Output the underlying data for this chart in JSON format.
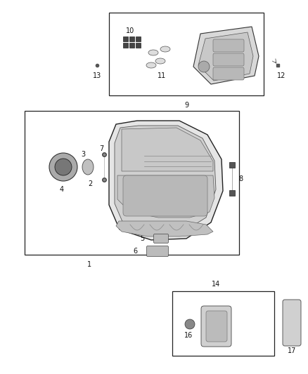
{
  "bg_color": "#ffffff",
  "fig_width": 4.38,
  "fig_height": 5.33,
  "dpi": 100
}
